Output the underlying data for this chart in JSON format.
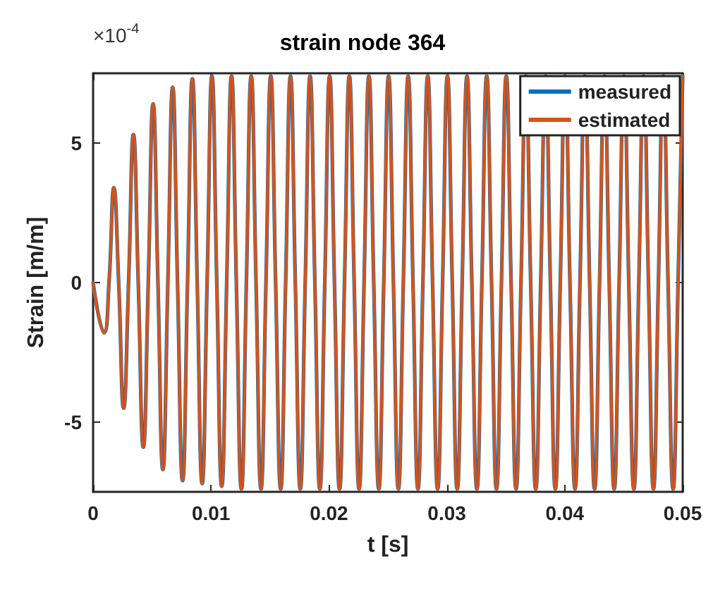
{
  "chart_data": {
    "type": "line",
    "title": "strain node 364",
    "xlabel": "t [s]",
    "ylabel": "Strain [m/m]",
    "annotations": [
      "×10$^{-4}$"
    ],
    "x": [
      0,
      0.00093,
      0.00135,
      0.00176,
      0.00217,
      0.00259,
      0.00301,
      0.00342,
      0.00383,
      0.00426,
      0.00468,
      0.00509,
      0.0055,
      0.00592,
      0.00634,
      0.00675,
      0.00716,
      0.00759,
      0.00801,
      0.00842,
      0.00883,
      0.00925,
      0.00967,
      0.01008,
      0.01049,
      0.01091,
      0.01133,
      0.01174,
      0.01215,
      0.01258,
      0.013,
      0.01341,
      0.01382,
      0.01424,
      0.01466,
      0.01507,
      0.01548,
      0.01591,
      0.01633,
      0.01674,
      0.01715,
      0.01757,
      0.01799,
      0.0184,
      0.01881,
      0.01923,
      0.01965,
      0.02006,
      0.02047,
      0.0209,
      0.02132,
      0.02173,
      0.02214,
      0.02256,
      0.02298,
      0.02339,
      0.0238,
      0.02423,
      0.02465,
      0.02506,
      0.02547,
      0.02589,
      0.02631,
      0.02672,
      0.02713,
      0.02755,
      0.02797,
      0.02838,
      0.02879,
      0.02922,
      0.02964,
      0.03005,
      0.03046,
      0.03088,
      0.0313,
      0.03171,
      0.03212,
      0.03255,
      0.03297,
      0.03338,
      0.03379,
      0.03421,
      0.03463,
      0.03504,
      0.03545,
      0.03587,
      0.03629,
      0.0367,
      0.03711,
      0.03754,
      0.03796,
      0.03837,
      0.03878,
      0.0392,
      0.03962,
      0.04003,
      0.04044,
      0.04087,
      0.04129,
      0.0417,
      0.04211,
      0.04253,
      0.04295,
      0.04336,
      0.04377,
      0.04419,
      0.04461,
      0.04502,
      0.04543,
      0.04586,
      0.04628,
      0.04669,
      0.0471,
      0.04752,
      0.04794,
      0.04835,
      0.04876,
      0.04919,
      0.04961,
      0.05
    ],
    "series": [
      {
        "name": "measured",
        "color": "#0072bd",
        "values": [
          0,
          -1.8,
          0,
          3.4,
          0,
          -4.5,
          0,
          5.3,
          0,
          -5.9,
          0,
          6.4,
          0,
          -6.7,
          0,
          7.0,
          0,
          -7.1,
          0,
          7.3,
          0,
          -7.2,
          0,
          7.4,
          0,
          -7.3,
          0,
          7.4,
          0,
          -7.4,
          0,
          7.4,
          0,
          -7.4,
          0,
          7.4,
          0,
          -7.4,
          0,
          7.4,
          0,
          -7.4,
          0,
          7.4,
          0,
          -7.4,
          0,
          7.4,
          0,
          -7.4,
          0,
          7.4,
          0,
          -7.4,
          0,
          7.4,
          0,
          -7.4,
          0,
          7.4,
          0,
          -7.4,
          0,
          7.4,
          0,
          -7.4,
          0,
          7.4,
          0,
          -7.4,
          0,
          7.4,
          0,
          -7.4,
          0,
          7.4,
          0,
          -7.4,
          0,
          7.4,
          0,
          -7.4,
          0,
          7.4,
          0,
          -7.4,
          0,
          7.4,
          0,
          -7.4,
          0,
          7.4,
          0,
          -7.4,
          0,
          7.4,
          0,
          -7.4,
          0,
          7.4,
          0,
          -7.4,
          0,
          7.4,
          0,
          -7.4,
          0,
          7.4,
          0,
          -7.4,
          0,
          7.4,
          0,
          -7.4,
          0,
          7.4,
          0,
          -7.4,
          0,
          7.4
        ]
      },
      {
        "name": "estimated",
        "color": "#d95319",
        "values": [
          0,
          -1.8,
          0,
          3.4,
          0,
          -4.5,
          0,
          5.3,
          0,
          -5.9,
          0,
          6.4,
          0,
          -6.7,
          0,
          7.0,
          0,
          -7.1,
          0,
          7.3,
          0,
          -7.2,
          0,
          7.4,
          0,
          -7.3,
          0,
          7.4,
          0,
          -7.4,
          0,
          7.4,
          0,
          -7.4,
          0,
          7.4,
          0,
          -7.4,
          0,
          7.4,
          0,
          -7.4,
          0,
          7.4,
          0,
          -7.4,
          0,
          7.4,
          0,
          -7.4,
          0,
          7.4,
          0,
          -7.4,
          0,
          7.4,
          0,
          -7.4,
          0,
          7.4,
          0,
          -7.4,
          0,
          7.4,
          0,
          -7.4,
          0,
          7.4,
          0,
          -7.4,
          0,
          7.4,
          0,
          -7.4,
          0,
          7.4,
          0,
          -7.4,
          0,
          7.4,
          0,
          -7.4,
          0,
          7.4,
          0,
          -7.4,
          0,
          7.4,
          0,
          -7.4,
          0,
          7.4,
          0,
          -7.4,
          0,
          7.4,
          0,
          -7.4,
          0,
          7.4,
          0,
          -7.4,
          0,
          7.4,
          0,
          -7.4,
          0,
          7.4,
          0,
          -7.4,
          0,
          7.4,
          0,
          -7.4,
          0,
          7.4,
          0,
          -7.4,
          0,
          7.4
        ]
      }
    ],
    "xlim": [
      0,
      0.05
    ],
    "xticks": [
      0,
      0.01,
      0.02,
      0.03,
      0.04,
      0.05
    ],
    "ylim": [
      -7.5,
      7.5
    ],
    "yticks": [
      -5,
      0,
      5
    ],
    "grid": false,
    "legend": "top right",
    "marker": "none",
    "line_style": "solid"
  }
}
